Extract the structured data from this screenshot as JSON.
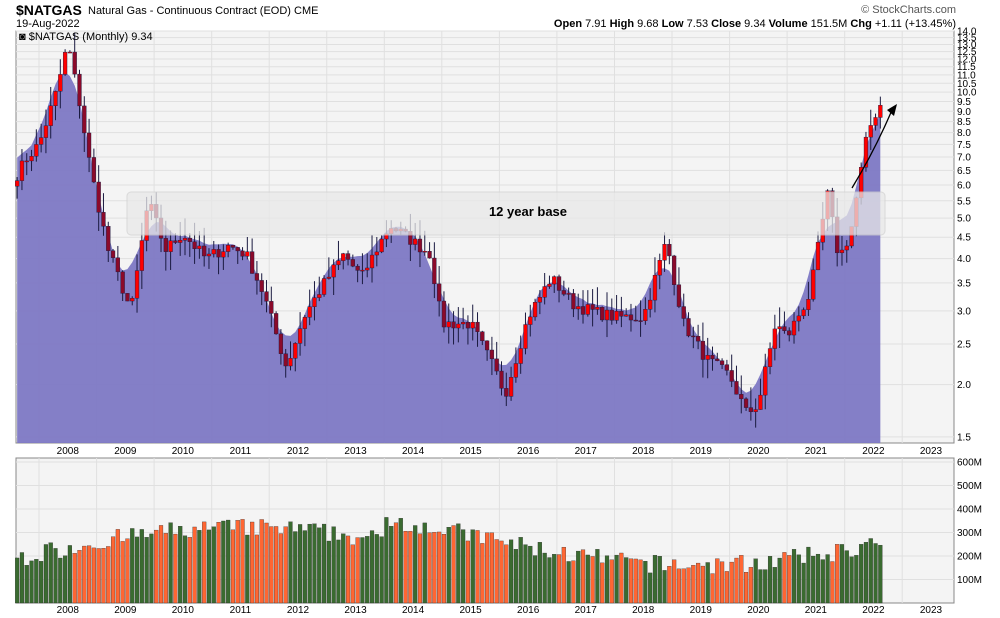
{
  "header": {
    "symbol": "$NATGAS",
    "description": "Natural Gas - Continuous Contract (EOD)",
    "exchange": "CME",
    "date": "19-Aug-2022",
    "brand": "© StockCharts.com",
    "open_label": "Open",
    "open": "7.91",
    "high_label": "High",
    "high": "9.68",
    "low_label": "Low",
    "low": "7.53",
    "close_label": "Close",
    "close": "9.34",
    "volume_label": "Volume",
    "volume": "151.5M",
    "chg_label": "Chg",
    "chg": "+1.11 (+13.45%)"
  },
  "legend": "$NATGAS (Monthly) 9.34",
  "annotation": "12 year base",
  "colors": {
    "up": "#ff0000",
    "down": "#8b0a2a",
    "area": "#7d78c4",
    "vol_up": "#3a6b30",
    "vol_down": "#ff6633"
  },
  "chart_data": [
    {
      "type": "candlestick-area",
      "scale": "log",
      "ylim": [
        1.45,
        14.0
      ],
      "y_ticks": [
        "1.5",
        "2.0",
        "2.5",
        "3.0",
        "3.5",
        "4.0",
        "4.5",
        "5.0",
        "5.5",
        "6.0",
        "6.5",
        "7.0",
        "7.5",
        "8.0",
        "8.5",
        "9.0",
        "9.5",
        "10.0",
        "10.5",
        "11.0",
        "11.5",
        "12.0",
        "12.5",
        "13.0",
        "13.5",
        "14.0"
      ],
      "x_ticks": [
        "2008",
        "2009",
        "2010",
        "2011",
        "2012",
        "2013",
        "2014",
        "2015",
        "2016",
        "2017",
        "2018",
        "2019",
        "2020",
        "2021",
        "2022",
        "2023"
      ],
      "x_range": [
        2007.6,
        2023.9
      ],
      "series": [
        {
          "values": [
            [
              2007.6,
              6.3
            ],
            [
              2007.8,
              7.0
            ],
            [
              2008.0,
              7.5
            ],
            [
              2008.3,
              10.0
            ],
            [
              2008.5,
              13.1
            ],
            [
              2008.7,
              9.5
            ],
            [
              2008.9,
              6.5
            ],
            [
              2009.2,
              4.2
            ],
            [
              2009.6,
              3.0
            ],
            [
              2009.9,
              5.5
            ],
            [
              2010.2,
              4.2
            ],
            [
              2010.5,
              4.6
            ],
            [
              2010.9,
              4.0
            ],
            [
              2011.3,
              4.3
            ],
            [
              2011.6,
              4.1
            ],
            [
              2011.9,
              3.3
            ],
            [
              2012.3,
              2.2
            ],
            [
              2012.6,
              2.9
            ],
            [
              2012.9,
              3.4
            ],
            [
              2013.3,
              4.1
            ],
            [
              2013.6,
              3.6
            ],
            [
              2013.9,
              4.3
            ],
            [
              2014.1,
              4.8
            ],
            [
              2014.4,
              4.5
            ],
            [
              2014.8,
              4.1
            ],
            [
              2015.0,
              2.8
            ],
            [
              2015.5,
              2.8
            ],
            [
              2015.9,
              2.2
            ],
            [
              2016.1,
              1.9
            ],
            [
              2016.5,
              2.9
            ],
            [
              2016.9,
              3.6
            ],
            [
              2017.3,
              3.1
            ],
            [
              2017.6,
              3.0
            ],
            [
              2018.0,
              2.9
            ],
            [
              2018.5,
              2.9
            ],
            [
              2018.9,
              4.4
            ],
            [
              2019.2,
              2.8
            ],
            [
              2019.6,
              2.3
            ],
            [
              2020.0,
              2.1
            ],
            [
              2020.3,
              1.7
            ],
            [
              2020.5,
              1.8
            ],
            [
              2020.8,
              2.8
            ],
            [
              2021.0,
              2.6
            ],
            [
              2021.4,
              3.3
            ],
            [
              2021.7,
              5.7
            ],
            [
              2021.9,
              4.0
            ],
            [
              2022.1,
              4.6
            ],
            [
              2022.4,
              8.0
            ],
            [
              2022.6,
              9.34
            ]
          ]
        }
      ]
    },
    {
      "type": "bar",
      "ylim": [
        0,
        600
      ],
      "y_ticks": [
        "100M",
        "200M",
        "300M",
        "400M",
        "500M",
        "600M"
      ],
      "x_range": [
        2007.6,
        2023.9
      ]
    }
  ]
}
